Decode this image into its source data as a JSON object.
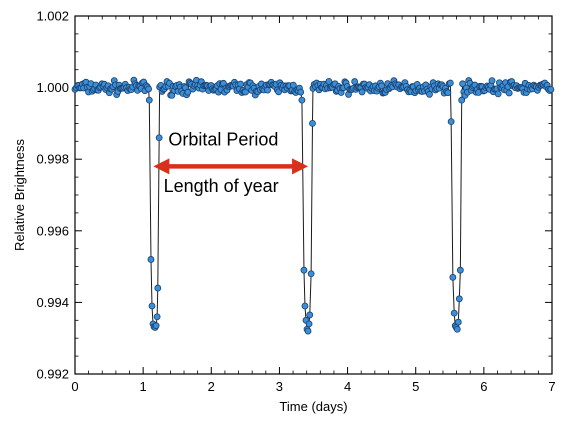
{
  "chart_data": {
    "type": "line",
    "title": "",
    "xlabel": "Time (days)",
    "ylabel": "Relative Brightness",
    "xlim": [
      0,
      7
    ],
    "ylim": [
      0.992,
      1.002
    ],
    "x_ticks": [
      0,
      1,
      2,
      3,
      4,
      5,
      6,
      7
    ],
    "x_tick_labels": [
      "0",
      "1",
      "2",
      "3",
      "4",
      "5",
      "6",
      "7"
    ],
    "y_ticks": [
      0.992,
      0.994,
      0.996,
      0.998,
      1.0,
      1.002
    ],
    "y_tick_labels": [
      "0.992",
      "0.994",
      "0.996",
      "0.998",
      "1.000",
      "1.002"
    ],
    "grid": false,
    "legend": "none",
    "series": [
      {
        "color": "#3a8fd8",
        "marker": "circle",
        "baseline": 1.0,
        "baseline_noise": 0.00012,
        "x_start": 0,
        "x_end": 7,
        "x_step": 0.018,
        "transits": [
          {
            "center": 1.17,
            "depth_min": 0.9932,
            "points": [
              [
                1.09,
                0.99965
              ],
              [
                1.115,
                0.9952
              ],
              [
                1.13,
                0.9939
              ],
              [
                1.145,
                0.9934
              ],
              [
                1.16,
                0.99332
              ],
              [
                1.175,
                0.9933
              ],
              [
                1.19,
                0.99335
              ],
              [
                1.205,
                0.9936
              ],
              [
                1.215,
                0.9944
              ],
              [
                1.235,
                0.9986
              ]
            ]
          },
          {
            "center": 3.42,
            "depth_min": 0.9932,
            "points": [
              [
                3.33,
                0.99965
              ],
              [
                3.36,
                0.9949
              ],
              [
                3.375,
                0.9939
              ],
              [
                3.39,
                0.9935
              ],
              [
                3.405,
                0.99325
              ],
              [
                3.42,
                0.9932
              ],
              [
                3.435,
                0.9934
              ],
              [
                3.445,
                0.99365
              ],
              [
                3.465,
                0.9948
              ],
              [
                3.485,
                0.999
              ]
            ]
          },
          {
            "center": 5.6,
            "depth_min": 0.9932,
            "points": [
              [
                5.52,
                0.99905
              ],
              [
                5.545,
                0.9947
              ],
              [
                5.565,
                0.9937
              ],
              [
                5.58,
                0.99335
              ],
              [
                5.595,
                0.9933
              ],
              [
                5.61,
                0.99325
              ],
              [
                5.625,
                0.99345
              ],
              [
                5.64,
                0.9941
              ],
              [
                5.655,
                0.9949
              ],
              [
                5.675,
                0.99965
              ]
            ]
          }
        ]
      }
    ],
    "annotations": [
      {
        "type": "double-arrow",
        "x1": 1.15,
        "x2": 3.42,
        "y": 0.9978,
        "color": "#d9301c"
      },
      {
        "type": "text",
        "text": "Orbital Period",
        "x": 1.37,
        "y": 0.99838
      },
      {
        "type": "text",
        "text": "Length of year",
        "x": 1.3,
        "y": 0.99708
      }
    ]
  }
}
